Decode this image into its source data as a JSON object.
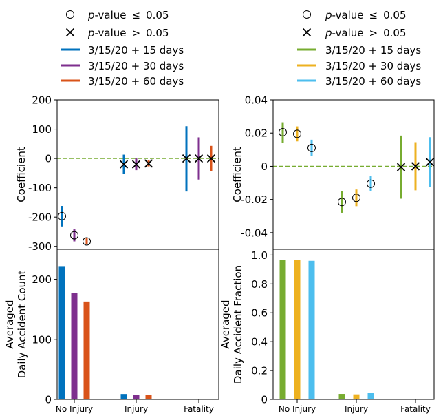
{
  "colors": {
    "left_15": "#0072bd",
    "left_30": "#7e2f8e",
    "left_60": "#d95319",
    "right_15": "#77ac30",
    "right_30": "#edb120",
    "right_60": "#4dbeee",
    "zero_line": "#77ac30"
  },
  "legends": [
    {
      "entries": [
        {
          "marker": "circle",
          "prefix": "p",
          "suffix": "-value",
          "op": "≤",
          "val": "0.05"
        },
        {
          "marker": "cross",
          "prefix": "p",
          "suffix": "-value",
          "op": ">",
          "val": "0.05"
        },
        {
          "marker": "line",
          "color": "#0072bd",
          "label": "3/15/20 + 15 days"
        },
        {
          "marker": "line",
          "color": "#7e2f8e",
          "label": "3/15/20 + 30 days"
        },
        {
          "marker": "line",
          "color": "#d95319",
          "label": "3/15/20 + 60 days"
        }
      ]
    },
    {
      "entries": [
        {
          "marker": "circle",
          "prefix": "p",
          "suffix": "-value",
          "op": "≤",
          "val": "0.05"
        },
        {
          "marker": "cross",
          "prefix": "p",
          "suffix": "-value",
          "op": ">",
          "val": "0.05"
        },
        {
          "marker": "line",
          "color": "#77ac30",
          "label": "3/15/20 + 15 days"
        },
        {
          "marker": "line",
          "color": "#edb120",
          "label": "3/15/20 + 30 days"
        },
        {
          "marker": "line",
          "color": "#4dbeee",
          "label": "3/15/20 + 60 days"
        }
      ]
    }
  ],
  "chart_data": [
    {
      "id": "coef-left",
      "type": "errorbar",
      "ylabel": "Coefficient",
      "ylim": [
        -310,
        200
      ],
      "yticks": [
        200,
        100,
        0,
        -100,
        -200,
        -300
      ],
      "categories": [
        "No Injury",
        "Injury",
        "Fatality"
      ],
      "zero_line": true,
      "series": [
        {
          "name": "3/15/20 + 15 days",
          "color": "#0072bd",
          "points": [
            {
              "cat": 0,
              "y": -197,
              "lo": -232,
              "hi": -162,
              "marker": "circle"
            },
            {
              "cat": 1,
              "y": -20,
              "lo": -53,
              "hi": 13,
              "marker": "cross"
            },
            {
              "cat": 2,
              "y": 0,
              "lo": -113,
              "hi": 110,
              "marker": "cross"
            }
          ]
        },
        {
          "name": "3/15/20 + 30 days",
          "color": "#7e2f8e",
          "points": [
            {
              "cat": 0,
              "y": -262,
              "lo": -283,
              "hi": -242,
              "marker": "circle"
            },
            {
              "cat": 1,
              "y": -20,
              "lo": -40,
              "hi": 0,
              "marker": "cross"
            },
            {
              "cat": 2,
              "y": 0,
              "lo": -72,
              "hi": 72,
              "marker": "cross"
            }
          ]
        },
        {
          "name": "3/15/20 + 60 days",
          "color": "#d95319",
          "points": [
            {
              "cat": 0,
              "y": -283,
              "lo": -293,
              "hi": -272,
              "marker": "circle"
            },
            {
              "cat": 1,
              "y": -17,
              "lo": -27,
              "hi": -7,
              "marker": "cross"
            },
            {
              "cat": 2,
              "y": 0,
              "lo": -43,
              "hi": 43,
              "marker": "cross"
            }
          ]
        }
      ]
    },
    {
      "id": "coef-right",
      "type": "errorbar",
      "ylabel": "Coefficient",
      "ylim": [
        -0.05,
        0.04
      ],
      "yticks": [
        0.04,
        0.02,
        0,
        -0.02,
        -0.04
      ],
      "ytick_labels": [
        "0.04",
        "0.02",
        "0",
        "-0.02",
        "-0.04"
      ],
      "categories": [
        "No Injury",
        "Injury",
        "Fatality"
      ],
      "zero_line": true,
      "series": [
        {
          "name": "3/15/20 + 15 days",
          "color": "#77ac30",
          "points": [
            {
              "cat": 0,
              "y": 0.0205,
              "lo": 0.014,
              "hi": 0.0265,
              "marker": "circle"
            },
            {
              "cat": 1,
              "y": -0.0215,
              "lo": -0.028,
              "hi": -0.015,
              "marker": "circle"
            },
            {
              "cat": 2,
              "y": -0.0005,
              "lo": -0.0195,
              "hi": 0.0185,
              "marker": "cross"
            }
          ]
        },
        {
          "name": "3/15/20 + 30 days",
          "color": "#edb120",
          "points": [
            {
              "cat": 0,
              "y": 0.0195,
              "lo": 0.015,
              "hi": 0.024,
              "marker": "circle"
            },
            {
              "cat": 1,
              "y": -0.019,
              "lo": -0.024,
              "hi": -0.014,
              "marker": "circle"
            },
            {
              "cat": 2,
              "y": 0.0,
              "lo": -0.0145,
              "hi": 0.0145,
              "marker": "cross"
            }
          ]
        },
        {
          "name": "3/15/20 + 60 days",
          "color": "#4dbeee",
          "points": [
            {
              "cat": 0,
              "y": 0.011,
              "lo": 0.006,
              "hi": 0.016,
              "marker": "circle"
            },
            {
              "cat": 1,
              "y": -0.0105,
              "lo": -0.015,
              "hi": -0.006,
              "marker": "circle"
            },
            {
              "cat": 2,
              "y": 0.0025,
              "lo": -0.0125,
              "hi": 0.0175,
              "marker": "cross"
            }
          ]
        }
      ]
    },
    {
      "id": "count-left",
      "type": "bar",
      "ylabel": [
        "Averaged",
        "Daily Accident Count"
      ],
      "ylim": [
        0,
        250
      ],
      "yticks": [
        200,
        100,
        0
      ],
      "categories": [
        "No Injury",
        "Injury",
        "Fatality"
      ],
      "series": [
        {
          "name": "3/15/20 + 15 days",
          "color": "#0072bd",
          "values": [
            222,
            9,
            1
          ]
        },
        {
          "name": "3/15/20 + 30 days",
          "color": "#7e2f8e",
          "values": [
            177,
            7,
            1
          ]
        },
        {
          "name": "3/15/20 + 60 days",
          "color": "#d95319",
          "values": [
            163,
            7,
            1
          ]
        }
      ]
    },
    {
      "id": "fraction-right",
      "type": "bar",
      "ylabel": [
        "Averaged",
        "Daily Accident Fraction"
      ],
      "ylim": [
        0,
        1.04
      ],
      "yticks": [
        1.0,
        0.8,
        0.6,
        0.4,
        0.2,
        0
      ],
      "ytick_labels": [
        "1.0",
        "0.8",
        "0.6",
        "0.4",
        "0.2",
        "0"
      ],
      "categories": [
        "No Injury",
        "Injury",
        "Fatality"
      ],
      "series": [
        {
          "name": "3/15/20 + 15 days",
          "color": "#77ac30",
          "values": [
            0.965,
            0.038,
            0.004
          ]
        },
        {
          "name": "3/15/20 + 30 days",
          "color": "#edb120",
          "values": [
            0.965,
            0.035,
            0.004
          ]
        },
        {
          "name": "3/15/20 + 60 days",
          "color": "#4dbeee",
          "values": [
            0.96,
            0.045,
            0.004
          ]
        }
      ]
    }
  ]
}
